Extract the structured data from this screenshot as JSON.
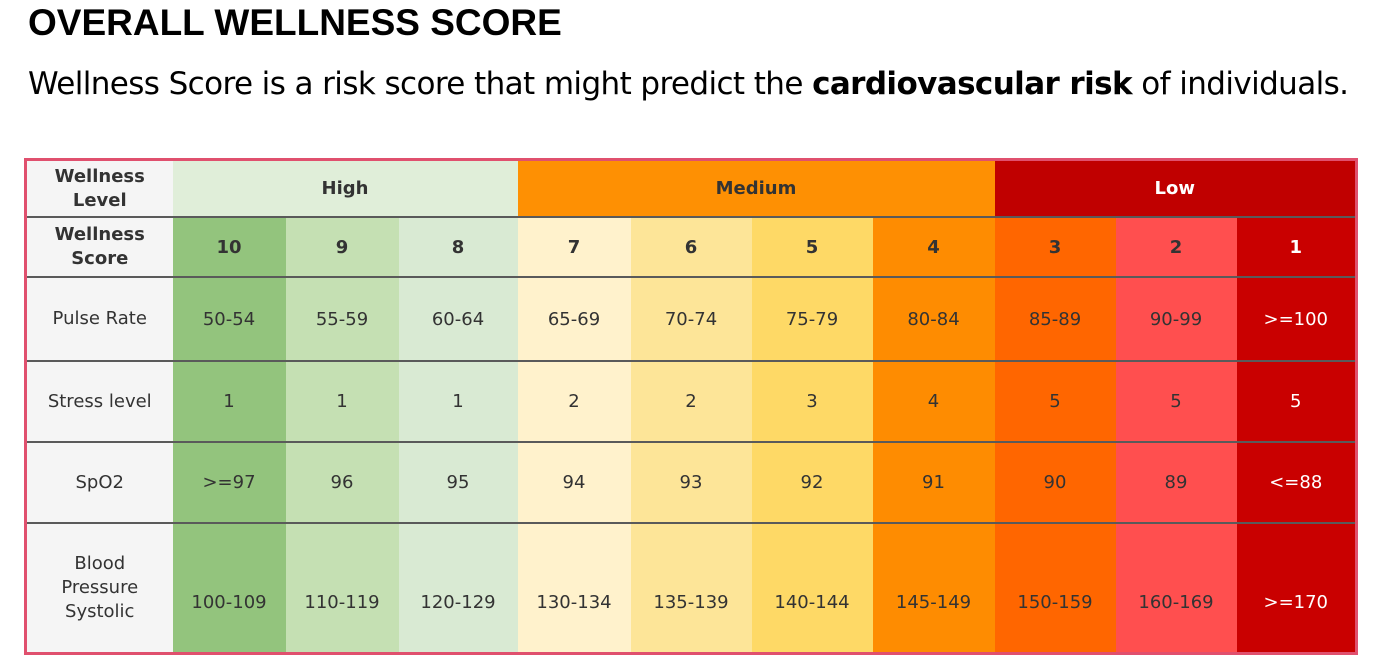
{
  "header": {
    "title": "OVERALL WELLNESS SCORE",
    "subtitle_pre": "Wellness Score is a risk score that might predict the ",
    "subtitle_bold": "cardiovascular risk",
    "subtitle_post": " of individuals."
  },
  "table": {
    "level_header": "Wellness Level",
    "score_header": "Wellness Score",
    "levels": [
      {
        "label": "High",
        "color": "#e0eed9",
        "text_color": "#333333"
      },
      {
        "label": "Medium",
        "color": "#fe9003",
        "text_color": "#333333"
      },
      {
        "label": "Low",
        "color": "#c00000",
        "text_color": "#ffffff"
      }
    ],
    "scores": [
      "10",
      "9",
      "8",
      "7",
      "6",
      "5",
      "4",
      "3",
      "2",
      "1"
    ],
    "column_colors": [
      "#93c47d",
      "#c5e0b3",
      "#d9ead3",
      "#fff2cc",
      "#fde598",
      "#fed966",
      "#fe8c01",
      "#ff6600",
      "#ff4f4f",
      "#c90000"
    ],
    "rows": [
      {
        "label": "Pulse Rate",
        "values": [
          "50-54",
          "55-59",
          "60-64",
          "65-69",
          "70-74",
          "75-79",
          "80-84",
          "85-89",
          "90-99",
          ">=100"
        ]
      },
      {
        "label": "Stress level",
        "values": [
          "1",
          "1",
          "1",
          "2",
          "2",
          "3",
          "4",
          "5",
          "5",
          "5"
        ]
      },
      {
        "label": "SpO2",
        "values": [
          ">=97",
          "96",
          "95",
          "94",
          "93",
          "92",
          "91",
          "90",
          "89",
          "<=88"
        ]
      },
      {
        "label": "Blood Pressure Systolic",
        "values": [
          "100-109",
          "110-119",
          "120-129",
          "130-134",
          "135-139",
          "140-144",
          "145-149",
          "150-159",
          "160-169",
          ">=170"
        ]
      }
    ]
  }
}
